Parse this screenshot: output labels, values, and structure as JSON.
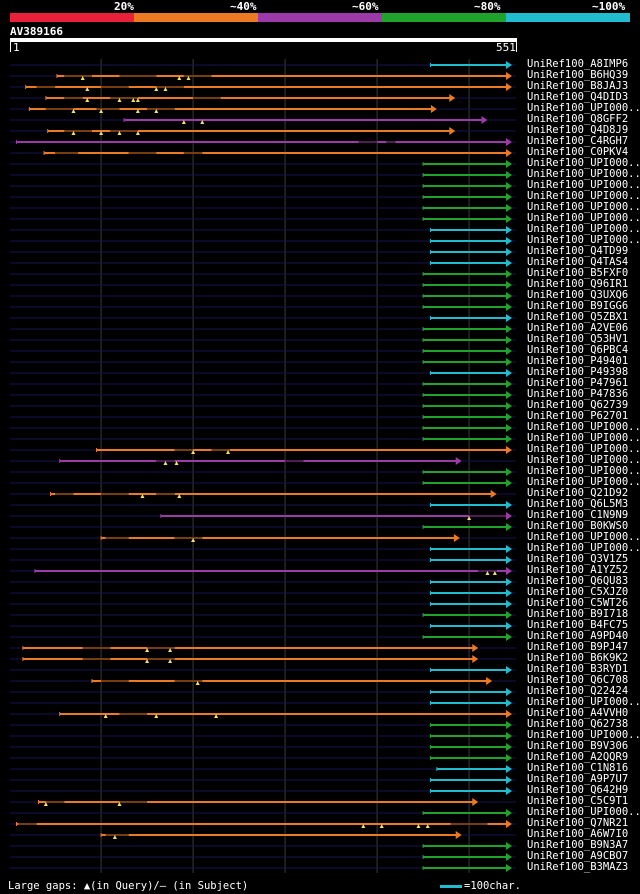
{
  "legend": {
    "segments": [
      {
        "label": "20%",
        "color": "#e8203a"
      },
      {
        "label": "~40%",
        "color": "#ec7a22"
      },
      {
        "label": "~60%",
        "color": "#9b3aa8"
      },
      {
        "label": "~80%",
        "color": "#1fa32b"
      },
      {
        "label": "~100%",
        "color": "#21bcd0"
      }
    ]
  },
  "query": {
    "name": "AV389166",
    "start": "1",
    "end": "551",
    "length": 551
  },
  "colors": {
    "orange": "#ec7a22",
    "purple": "#9b3aa8",
    "green": "#1fa32b",
    "cyan": "#21bcd0",
    "track": "#15154f",
    "grid": "#3a3a3a",
    "gap_marker": "#f0e070"
  },
  "hits": [
    {
      "name": "UniRef100_A8IMP6",
      "color": "cyan",
      "start": 458,
      "end": 576,
      "gaps": [],
      "markers": []
    },
    {
      "name": "UniRef100_B6HQ39",
      "color": "orange",
      "start": 52,
      "end": 555,
      "gaps": [
        [
          60,
          90
        ],
        [
          120,
          160
        ],
        [
          190,
          220
        ]
      ],
      "markers": [
        80,
        185,
        195
      ]
    },
    {
      "name": "UniRef100_B8JAJ3",
      "color": "orange",
      "start": 18,
      "end": 550,
      "gaps": [
        [
          30,
          50
        ],
        [
          100,
          130
        ],
        [
          160,
          190
        ]
      ],
      "markers": [
        85,
        160,
        170
      ]
    },
    {
      "name": "UniRef100_Q4DID3",
      "color": "orange",
      "start": 40,
      "end": 485,
      "gaps": [
        [
          60,
          80
        ],
        [
          110,
          140
        ],
        [
          200,
          230
        ]
      ],
      "markers": [
        85,
        120,
        135,
        140
      ]
    },
    {
      "name": "UniRef100_UPI000..",
      "color": "orange",
      "start": 22,
      "end": 465,
      "gaps": [
        [
          40,
          70
        ],
        [
          95,
          120
        ],
        [
          150,
          180
        ]
      ],
      "markers": [
        70,
        100,
        140,
        160
      ]
    },
    {
      "name": "UniRef100_Q8GFF2",
      "color": "purple",
      "start": 125,
      "end": 520,
      "gaps": [],
      "markers": [
        190,
        210
      ]
    },
    {
      "name": "UniRef100_Q4D8J9",
      "color": "orange",
      "start": 42,
      "end": 485,
      "gaps": [
        [
          60,
          90
        ],
        [
          110,
          140
        ]
      ],
      "markers": [
        70,
        100,
        120,
        140
      ]
    },
    {
      "name": "UniRef100_C4RGH7",
      "color": "purple",
      "start": 8,
      "end": 550,
      "gaps": [
        [
          380,
          400
        ],
        [
          410,
          420
        ]
      ],
      "markers": []
    },
    {
      "name": "UniRef100_C0PKV4",
      "color": "orange",
      "start": 38,
      "end": 558,
      "gaps": [
        [
          50,
          75
        ],
        [
          130,
          160
        ],
        [
          190,
          210
        ]
      ],
      "markers": []
    },
    {
      "name": "UniRef100_UPI000..",
      "color": "green",
      "start": 450,
      "end": 578,
      "gaps": [],
      "markers": []
    },
    {
      "name": "UniRef100_UPI000..",
      "color": "green",
      "start": 450,
      "end": 578,
      "gaps": [],
      "markers": []
    },
    {
      "name": "UniRef100_UPI000..",
      "color": "green",
      "start": 450,
      "end": 578,
      "gaps": [],
      "markers": []
    },
    {
      "name": "UniRef100_UPI000..",
      "color": "green",
      "start": 450,
      "end": 578,
      "gaps": [],
      "markers": []
    },
    {
      "name": "UniRef100_UPI000..",
      "color": "green",
      "start": 450,
      "end": 578,
      "gaps": [],
      "markers": []
    },
    {
      "name": "UniRef100_UPI000..",
      "color": "green",
      "start": 450,
      "end": 578,
      "gaps": [],
      "markers": []
    },
    {
      "name": "UniRef100_UPI000..",
      "color": "cyan",
      "start": 458,
      "end": 576,
      "gaps": [],
      "markers": []
    },
    {
      "name": "UniRef100_UPI000..",
      "color": "cyan",
      "start": 458,
      "end": 576,
      "gaps": [],
      "markers": []
    },
    {
      "name": "UniRef100_Q4TD99",
      "color": "cyan",
      "start": 458,
      "end": 576,
      "gaps": [],
      "markers": []
    },
    {
      "name": "UniRef100_Q4TAS4",
      "color": "cyan",
      "start": 458,
      "end": 576,
      "gaps": [],
      "markers": []
    },
    {
      "name": "UniRef100_B5FXF0",
      "color": "green",
      "start": 450,
      "end": 578,
      "gaps": [],
      "markers": []
    },
    {
      "name": "UniRef100_Q96IR1",
      "color": "green",
      "start": 450,
      "end": 578,
      "gaps": [],
      "markers": []
    },
    {
      "name": "UniRef100_Q3UXQ6",
      "color": "green",
      "start": 450,
      "end": 578,
      "gaps": [],
      "markers": []
    },
    {
      "name": "UniRef100_B9IGG6",
      "color": "green",
      "start": 450,
      "end": 578,
      "gaps": [],
      "markers": []
    },
    {
      "name": "UniRef100_Q5ZBX1",
      "color": "cyan",
      "start": 458,
      "end": 576,
      "gaps": [],
      "markers": []
    },
    {
      "name": "UniRef100_A2VE06",
      "color": "green",
      "start": 450,
      "end": 578,
      "gaps": [],
      "markers": []
    },
    {
      "name": "UniRef100_Q53HV1",
      "color": "green",
      "start": 450,
      "end": 578,
      "gaps": [],
      "markers": []
    },
    {
      "name": "UniRef100_Q6PBC4",
      "color": "green",
      "start": 450,
      "end": 578,
      "gaps": [],
      "markers": []
    },
    {
      "name": "UniRef100_P49401",
      "color": "green",
      "start": 450,
      "end": 578,
      "gaps": [],
      "markers": []
    },
    {
      "name": "UniRef100_P49398",
      "color": "cyan",
      "start": 458,
      "end": 576,
      "gaps": [],
      "markers": []
    },
    {
      "name": "UniRef100_P47961",
      "color": "green",
      "start": 450,
      "end": 578,
      "gaps": [],
      "markers": []
    },
    {
      "name": "UniRef100_P47836",
      "color": "green",
      "start": 450,
      "end": 578,
      "gaps": [],
      "markers": []
    },
    {
      "name": "UniRef100_Q62739",
      "color": "green",
      "start": 450,
      "end": 578,
      "gaps": [],
      "markers": []
    },
    {
      "name": "UniRef100_P62701",
      "color": "green",
      "start": 450,
      "end": 578,
      "gaps": [],
      "markers": []
    },
    {
      "name": "UniRef100_UPI000..",
      "color": "green",
      "start": 450,
      "end": 578,
      "gaps": [],
      "markers": []
    },
    {
      "name": "UniRef100_UPI000..",
      "color": "green",
      "start": 450,
      "end": 578,
      "gaps": [],
      "markers": []
    },
    {
      "name": "UniRef100_UPI000..",
      "color": "orange",
      "start": 95,
      "end": 572,
      "gaps": [
        [
          180,
          200
        ],
        [
          220,
          240
        ]
      ],
      "markers": [
        200,
        238
      ]
    },
    {
      "name": "UniRef100_UPI000..",
      "color": "purple",
      "start": 55,
      "end": 492,
      "gaps": [
        [
          160,
          180
        ],
        [
          300,
          320
        ]
      ],
      "markers": [
        170,
        182
      ]
    },
    {
      "name": "UniRef100_UPI000..",
      "color": "green",
      "start": 450,
      "end": 578,
      "gaps": [],
      "markers": []
    },
    {
      "name": "UniRef100_UPI000..",
      "color": "green",
      "start": 450,
      "end": 578,
      "gaps": [],
      "markers": []
    },
    {
      "name": "UniRef100_Q21D92",
      "color": "orange",
      "start": 45,
      "end": 530,
      "gaps": [
        [
          50,
          70
        ],
        [
          100,
          130
        ],
        [
          160,
          180
        ]
      ],
      "markers": [
        145,
        185
      ]
    },
    {
      "name": "UniRef100_Q6L5M3",
      "color": "cyan",
      "start": 458,
      "end": 576,
      "gaps": [],
      "markers": []
    },
    {
      "name": "UniRef100_C1N9N9",
      "color": "purple",
      "start": 165,
      "end": 578,
      "gaps": [
        [
          500,
          540
        ]
      ],
      "markers": [
        500
      ]
    },
    {
      "name": "UniRef100_B0KWS0",
      "color": "green",
      "start": 450,
      "end": 578,
      "gaps": [],
      "markers": []
    },
    {
      "name": "UniRef100_UPI000..",
      "color": "orange",
      "start": 100,
      "end": 490,
      "gaps": [
        [
          105,
          130
        ],
        [
          180,
          210
        ]
      ],
      "markers": [
        200
      ]
    },
    {
      "name": "UniRef100_UPI000..",
      "color": "cyan",
      "start": 458,
      "end": 576,
      "gaps": [],
      "markers": []
    },
    {
      "name": "UniRef100_Q3V1Z5",
      "color": "cyan",
      "start": 458,
      "end": 576,
      "gaps": [],
      "markers": []
    },
    {
      "name": "UniRef100_A1YZ52",
      "color": "purple",
      "start": 28,
      "end": 555,
      "gaps": [
        [
          510,
          530
        ]
      ],
      "markers": [
        520,
        528
      ]
    },
    {
      "name": "UniRef100_Q6QU83",
      "color": "cyan",
      "start": 458,
      "end": 576,
      "gaps": [],
      "markers": []
    },
    {
      "name": "UniRef100_C5XJZ0",
      "color": "cyan",
      "start": 458,
      "end": 576,
      "gaps": [],
      "markers": []
    },
    {
      "name": "UniRef100_C5WT26",
      "color": "cyan",
      "start": 458,
      "end": 576,
      "gaps": [],
      "markers": []
    },
    {
      "name": "UniRef100_B9I718",
      "color": "green",
      "start": 450,
      "end": 578,
      "gaps": [],
      "markers": []
    },
    {
      "name": "UniRef100_B4FC75",
      "color": "cyan",
      "start": 458,
      "end": 576,
      "gaps": [],
      "markers": []
    },
    {
      "name": "UniRef100_A9PD40",
      "color": "green",
      "start": 450,
      "end": 578,
      "gaps": [],
      "markers": []
    },
    {
      "name": "UniRef100_B9PJ47",
      "color": "orange",
      "start": 15,
      "end": 510,
      "gaps": [
        [
          80,
          110
        ],
        [
          150,
          180
        ]
      ],
      "markers": [
        150,
        175
      ]
    },
    {
      "name": "UniRef100_B6K9K2",
      "color": "orange",
      "start": 15,
      "end": 510,
      "gaps": [
        [
          80,
          110
        ],
        [
          150,
          180
        ]
      ],
      "markers": [
        150,
        175
      ]
    },
    {
      "name": "UniRef100_B3RYD1",
      "color": "cyan",
      "start": 458,
      "end": 576,
      "gaps": [],
      "markers": []
    },
    {
      "name": "UniRef100_Q6C708",
      "color": "orange",
      "start": 90,
      "end": 525,
      "gaps": [
        [
          100,
          130
        ],
        [
          180,
          210
        ]
      ],
      "markers": [
        205
      ]
    },
    {
      "name": "UniRef100_Q22424",
      "color": "cyan",
      "start": 458,
      "end": 576,
      "gaps": [],
      "markers": []
    },
    {
      "name": "UniRef100_UPI000..",
      "color": "cyan",
      "start": 458,
      "end": 576,
      "gaps": [],
      "markers": []
    },
    {
      "name": "UniRef100_A4VVH0",
      "color": "orange",
      "start": 55,
      "end": 572,
      "gaps": [
        [
          120,
          150
        ]
      ],
      "markers": [
        105,
        160,
        225
      ]
    },
    {
      "name": "UniRef100_Q62738",
      "color": "green",
      "start": 458,
      "end": 578,
      "gaps": [],
      "markers": []
    },
    {
      "name": "UniRef100_UPI000..",
      "color": "green",
      "start": 458,
      "end": 578,
      "gaps": [],
      "markers": []
    },
    {
      "name": "UniRef100_B9V306",
      "color": "green",
      "start": 458,
      "end": 578,
      "gaps": [],
      "markers": []
    },
    {
      "name": "UniRef100_A2QQR9",
      "color": "green",
      "start": 458,
      "end": 578,
      "gaps": [],
      "markers": []
    },
    {
      "name": "UniRef100_C1N816",
      "color": "cyan",
      "start": 465,
      "end": 576,
      "gaps": [],
      "markers": []
    },
    {
      "name": "UniRef100_A9P7U7",
      "color": "cyan",
      "start": 458,
      "end": 576,
      "gaps": [],
      "markers": []
    },
    {
      "name": "UniRef100_Q642H9",
      "color": "cyan",
      "start": 458,
      "end": 576,
      "gaps": [],
      "markers": []
    },
    {
      "name": "UniRef100_C5C9T1",
      "color": "orange",
      "start": 32,
      "end": 510,
      "gaps": [
        [
          40,
          60
        ],
        [
          120,
          150
        ]
      ],
      "markers": [
        40,
        120
      ]
    },
    {
      "name": "UniRef100_UPI000..",
      "color": "green",
      "start": 450,
      "end": 578,
      "gaps": [],
      "markers": []
    },
    {
      "name": "UniRef100_Q7NR21",
      "color": "orange",
      "start": 8,
      "end": 550,
      "gaps": [
        [
          10,
          30
        ],
        [
          480,
          520
        ]
      ],
      "markers": [
        385,
        405,
        445,
        455
      ]
    },
    {
      "name": "UniRef100_A6W7I0",
      "color": "orange",
      "start": 100,
      "end": 492,
      "gaps": [
        [
          105,
          130
        ]
      ],
      "markers": [
        115
      ]
    },
    {
      "name": "UniRef100_B9N3A7",
      "color": "green",
      "start": 450,
      "end": 578,
      "gaps": [],
      "markers": []
    },
    {
      "name": "UniRef100_A9CBO7",
      "color": "green",
      "start": 450,
      "end": 578,
      "gaps": [],
      "markers": []
    },
    {
      "name": "UniRef100_B3MAZ3",
      "color": "green",
      "start": 450,
      "end": 578,
      "gaps": [],
      "markers": []
    }
  ],
  "footer": {
    "gaps_label": "Large gaps: ▲(in Query)/– (in Subject)",
    "scale_label": "=100char."
  }
}
